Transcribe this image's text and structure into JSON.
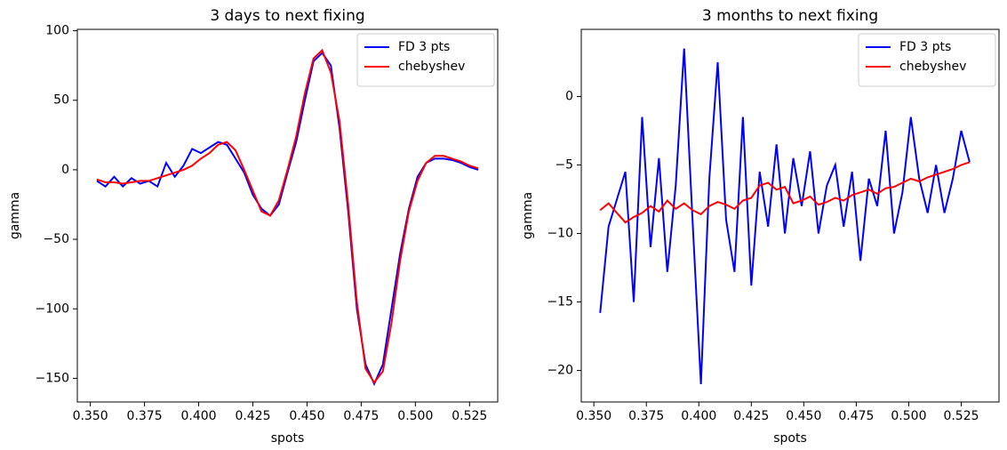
{
  "chart_data": [
    {
      "type": "line",
      "title": "3 days to next fixing",
      "x_label": "spots",
      "y_label": "gamma",
      "xlim": [
        0.344,
        0.538
      ],
      "ylim": [
        -167,
        101
      ],
      "xticks": [
        {
          "value": 0.35,
          "label": "0.350"
        },
        {
          "value": 0.375,
          "label": "0.375"
        },
        {
          "value": 0.4,
          "label": "0.400"
        },
        {
          "value": 0.425,
          "label": "0.425"
        },
        {
          "value": 0.45,
          "label": "0.450"
        },
        {
          "value": 0.475,
          "label": "0.475"
        },
        {
          "value": 0.5,
          "label": "0.500"
        },
        {
          "value": 0.525,
          "label": "0.525"
        }
      ],
      "yticks": [
        {
          "value": -150,
          "label": "−150"
        },
        {
          "value": -100,
          "label": "−100"
        },
        {
          "value": -50,
          "label": "−50"
        },
        0,
        50,
        100
      ],
      "legend": "upper right",
      "x": [
        0.353,
        0.357,
        0.361,
        0.365,
        0.369,
        0.373,
        0.377,
        0.381,
        0.385,
        0.389,
        0.393,
        0.397,
        0.401,
        0.405,
        0.409,
        0.413,
        0.417,
        0.421,
        0.425,
        0.429,
        0.433,
        0.437,
        0.441,
        0.445,
        0.449,
        0.453,
        0.457,
        0.461,
        0.465,
        0.469,
        0.473,
        0.477,
        0.481,
        0.485,
        0.489,
        0.493,
        0.497,
        0.501,
        0.505,
        0.509,
        0.513,
        0.517,
        0.521,
        0.525,
        0.529
      ],
      "series": [
        {
          "name": "FD 3 pts",
          "color": "#0000ff",
          "values": [
            -8,
            -12,
            -5,
            -12,
            -6,
            -10,
            -8,
            -12,
            5,
            -5,
            3,
            15,
            12,
            16,
            20,
            18,
            8,
            -2,
            -18,
            -28,
            -33,
            -25,
            -2,
            20,
            50,
            78,
            84,
            75,
            30,
            -30,
            -100,
            -140,
            -154,
            -140,
            -100,
            -60,
            -28,
            -5,
            5,
            8,
            8,
            7,
            5,
            2,
            0
          ]
        },
        {
          "name": "chebyshev",
          "color": "#ff0000",
          "values": [
            -7,
            -9,
            -9,
            -10,
            -9,
            -8,
            -8,
            -6,
            -4,
            -2,
            0,
            3,
            8,
            12,
            18,
            20,
            14,
            0,
            -15,
            -30,
            -33,
            -22,
            0,
            24,
            55,
            80,
            86,
            70,
            35,
            -25,
            -95,
            -143,
            -153,
            -145,
            -110,
            -65,
            -30,
            -8,
            5,
            10,
            10,
            8,
            6,
            3,
            1
          ]
        }
      ]
    },
    {
      "type": "line",
      "title": "3 months to next fixing",
      "x_label": "spots",
      "y_label": "gamma",
      "xlim": [
        0.344,
        0.543
      ],
      "ylim": [
        -22.3,
        4.9
      ],
      "xticks": [
        {
          "value": 0.35,
          "label": "0.350"
        },
        {
          "value": 0.375,
          "label": "0.375"
        },
        {
          "value": 0.4,
          "label": "0.400"
        },
        {
          "value": 0.425,
          "label": "0.425"
        },
        {
          "value": 0.45,
          "label": "0.450"
        },
        {
          "value": 0.475,
          "label": "0.475"
        },
        {
          "value": 0.5,
          "label": "0.500"
        },
        {
          "value": 0.525,
          "label": "0.525"
        }
      ],
      "yticks": [
        {
          "value": -20,
          "label": "−20"
        },
        {
          "value": -15,
          "label": "−15"
        },
        {
          "value": -10,
          "label": "−10"
        },
        {
          "value": -5,
          "label": "−5"
        },
        0
      ],
      "legend": "upper right",
      "x": [
        0.353,
        0.357,
        0.361,
        0.365,
        0.369,
        0.373,
        0.377,
        0.381,
        0.385,
        0.389,
        0.393,
        0.397,
        0.401,
        0.405,
        0.409,
        0.413,
        0.417,
        0.421,
        0.425,
        0.429,
        0.433,
        0.437,
        0.441,
        0.445,
        0.449,
        0.453,
        0.457,
        0.461,
        0.465,
        0.469,
        0.473,
        0.477,
        0.481,
        0.485,
        0.489,
        0.493,
        0.497,
        0.501,
        0.505,
        0.509,
        0.513,
        0.517,
        0.521,
        0.525,
        0.529
      ],
      "series": [
        {
          "name": "FD 3 pts",
          "color": "#0000ff",
          "values": [
            -15.8,
            -9.5,
            -7.5,
            -5.5,
            -15.0,
            -1.5,
            -11.0,
            -4.5,
            -12.8,
            -6.5,
            3.5,
            -9.0,
            -21.0,
            -6.0,
            2.5,
            -9.0,
            -12.8,
            -1.5,
            -13.8,
            -5.5,
            -9.5,
            -3.5,
            -10.0,
            -4.5,
            -8.0,
            -4.0,
            -10.0,
            -6.5,
            -5.0,
            -9.5,
            -5.5,
            -12.0,
            -6.0,
            -8.0,
            -2.5,
            -10.0,
            -7.0,
            -1.5,
            -6.0,
            -8.5,
            -5.0,
            -8.5,
            -6.0,
            -2.5,
            -4.8
          ]
        },
        {
          "name": "chebyshev",
          "color": "#ff0000",
          "values": [
            -8.3,
            -7.8,
            -8.5,
            -9.2,
            -8.8,
            -8.5,
            -8.0,
            -8.4,
            -7.6,
            -8.2,
            -7.8,
            -8.3,
            -8.6,
            -8.0,
            -7.7,
            -7.9,
            -8.2,
            -7.6,
            -7.4,
            -6.5,
            -6.3,
            -6.8,
            -6.6,
            -7.8,
            -7.6,
            -7.3,
            -7.9,
            -7.7,
            -7.4,
            -7.6,
            -7.2,
            -7.0,
            -6.8,
            -7.1,
            -6.7,
            -6.6,
            -6.3,
            -6.0,
            -6.2,
            -5.9,
            -5.7,
            -5.5,
            -5.3,
            -5.0,
            -4.8
          ]
        }
      ]
    }
  ]
}
